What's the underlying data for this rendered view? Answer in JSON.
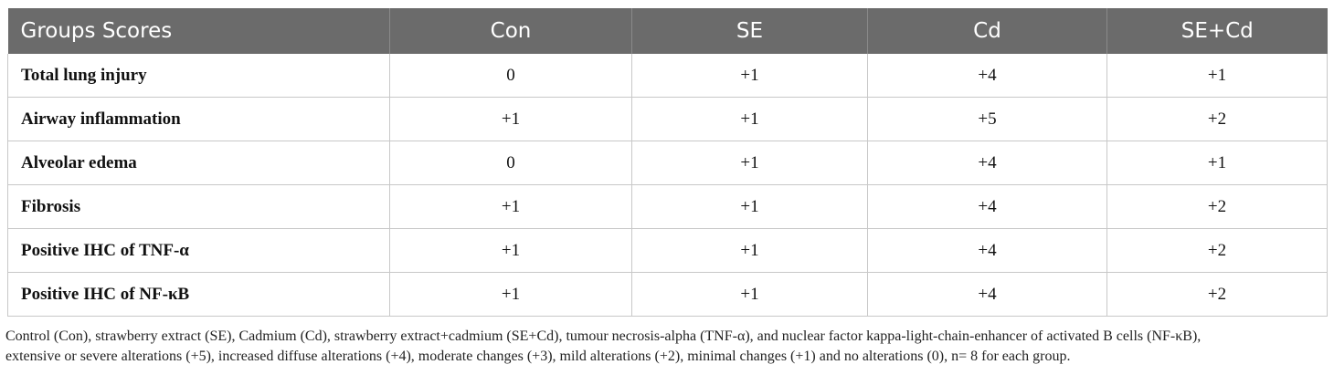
{
  "table": {
    "headers": [
      "Groups Scores",
      "Con",
      "SE",
      "Cd",
      "SE+Cd"
    ],
    "rows": [
      {
        "label": "Total lung injury",
        "values": [
          "0",
          "+1",
          "+4",
          "+1"
        ]
      },
      {
        "label": "Airway inflammation",
        "values": [
          "+1",
          "+1",
          "+5",
          "+2"
        ]
      },
      {
        "label": "Alveolar edema",
        "values": [
          "0",
          "+1",
          "+4",
          "+1"
        ]
      },
      {
        "label": "Fibrosis",
        "values": [
          "+1",
          "+1",
          "+4",
          "+2"
        ]
      },
      {
        "label": "Positive IHC of TNF-α",
        "values": [
          "+1",
          "+1",
          "+4",
          "+2"
        ]
      },
      {
        "label": "Positive IHC of NF-κB",
        "values": [
          "+1",
          "+1",
          "+4",
          "+2"
        ]
      }
    ]
  },
  "footnote": {
    "line1": "Control (Con), strawberry extract (SE), Cadmium (Cd), strawberry extract+cadmium (SE+Cd), tumour necrosis-alpha (TNF-α), and nuclear factor kappa-light-chain-enhancer of activated B cells (NF-κB),",
    "line2": "extensive or severe alterations (+5), increased diffuse alterations (+4), moderate changes (+3), mild alterations (+2), minimal changes (+1) and no alterations (0), n= 8 for each group."
  }
}
